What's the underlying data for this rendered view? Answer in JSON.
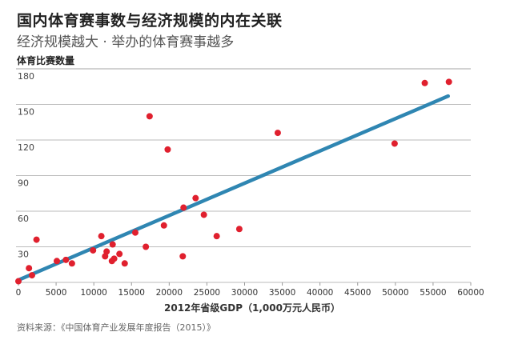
{
  "chart_data": {
    "type": "scatter",
    "title": "国内体育赛事数与经济规模的内在关联",
    "subtitle": "经济规模越大 · 举办的体育赛事越多",
    "ylabel": "体育比赛数量",
    "xlabel": "2012年省级GDP（1,000万元人民币）",
    "source": "资料来源：《中国体育产业发展年度报告（2015）》",
    "xlim": [
      0,
      60000
    ],
    "ylim": [
      0,
      180
    ],
    "xticks": [
      0,
      5000,
      10000,
      15000,
      20000,
      25000,
      30000,
      35000,
      40000,
      45000,
      50000,
      55000,
      60000
    ],
    "yticks": [
      30,
      60,
      90,
      120,
      150,
      180
    ],
    "grid": "horizontal",
    "point_color": "#e0202e",
    "line_color": "#2f86b2",
    "points": [
      [
        0,
        1
      ],
      [
        1400,
        12
      ],
      [
        1800,
        6
      ],
      [
        2400,
        36
      ],
      [
        5100,
        18
      ],
      [
        6300,
        19
      ],
      [
        7100,
        16
      ],
      [
        9900,
        27
      ],
      [
        11000,
        39
      ],
      [
        11500,
        22
      ],
      [
        11700,
        26
      ],
      [
        12500,
        32
      ],
      [
        12400,
        18
      ],
      [
        12700,
        20
      ],
      [
        13400,
        24
      ],
      [
        14100,
        16
      ],
      [
        15500,
        42
      ],
      [
        16900,
        30
      ],
      [
        17400,
        140
      ],
      [
        19300,
        48
      ],
      [
        19800,
        112
      ],
      [
        21800,
        22
      ],
      [
        21900,
        63
      ],
      [
        23500,
        71
      ],
      [
        24600,
        57
      ],
      [
        26300,
        39
      ],
      [
        29300,
        45
      ],
      [
        34400,
        126
      ],
      [
        49900,
        117
      ],
      [
        53900,
        168
      ],
      [
        57100,
        169
      ]
    ],
    "trendline": [
      [
        0,
        2
      ],
      [
        57000,
        157
      ]
    ]
  }
}
